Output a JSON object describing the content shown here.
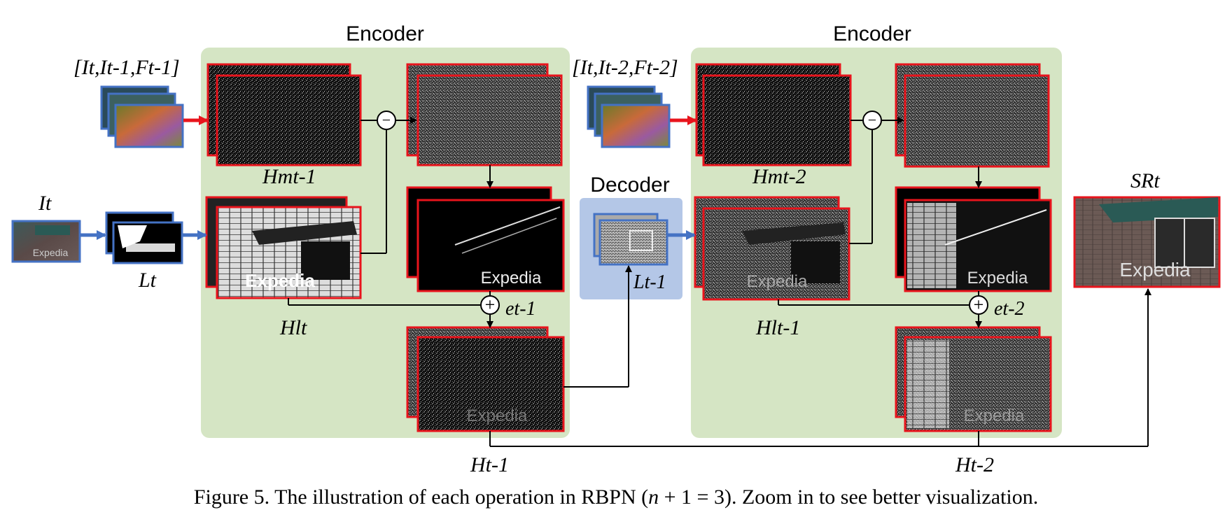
{
  "labels": {
    "encoder_left": "Encoder",
    "encoder_right": "Encoder",
    "decoder": "Decoder",
    "input_left": "[It,It-1,Ft-1]",
    "input_right": "[It,It-2,Ft-2]",
    "I_t": "It",
    "L_t": "Lt",
    "L_t1": "Lt-1",
    "H_m_t1": "Hmt-1",
    "H_m_t2": "Hmt-2",
    "H_l_t": "Hlt",
    "H_l_t1": "Hlt-1",
    "e_t1": "et-1",
    "e_t2": "et-2",
    "H_t1": "Ht-1",
    "H_t2": "Ht-2",
    "SR_t": "SRt",
    "watermark": "Expedia",
    "minus_op": "−",
    "plus_op": "+"
  },
  "caption": {
    "text_before": "Figure 5. The illustration of each operation in RBPN (",
    "math_n": "n",
    "math_rest": " + 1 = 3",
    "text_after": "). Zoom in to see better visualization."
  },
  "colors": {
    "encoder_bg": "#d5e5c4",
    "decoder_bg": "#b4c7e7",
    "feature_border": "#e8141c",
    "input_border": "#4472c4",
    "red_arrow": "#e8141c",
    "blue_arrow": "#4472c4"
  }
}
